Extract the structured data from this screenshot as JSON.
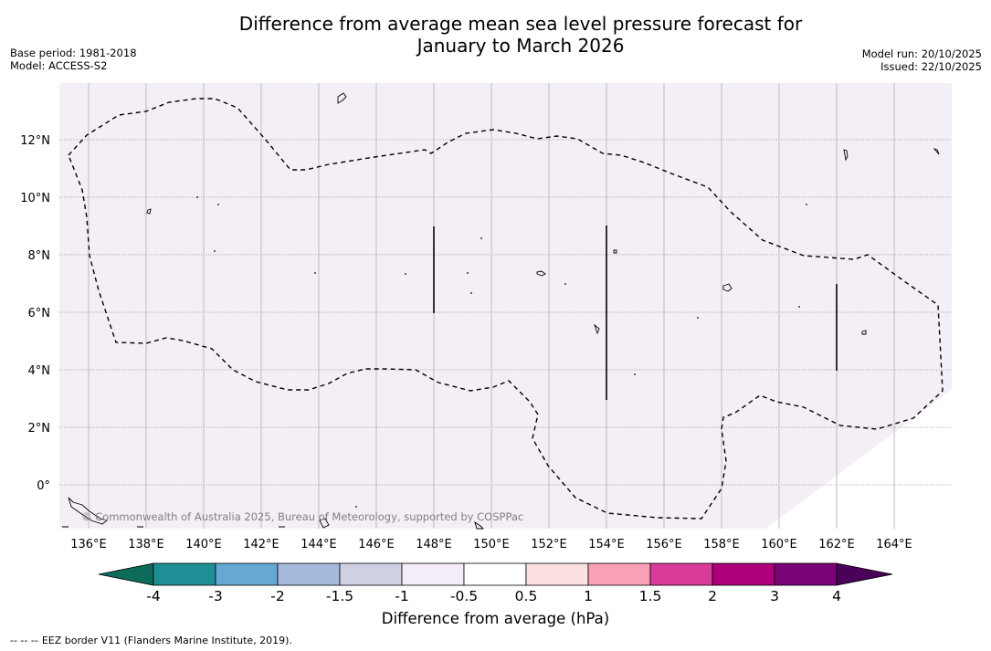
{
  "title_line1": "Difference from average mean sea level pressure forecast for",
  "title_line2": "January to March 2026",
  "base_period": "Base period: 1981-2018",
  "model": "Model: ACCESS-S2",
  "model_run": "Model run: 20/10/2025",
  "issued": "Issued: 22/10/2025",
  "copyright": "© Commonwealth of Australia 2025, Bureau of Meteorology, supported by COSPPac",
  "lat_labels": [
    "12°N",
    "10°N",
    "8°N",
    "6°N",
    "4°N",
    "2°N",
    "0°"
  ],
  "lon_labels": [
    "136°E",
    "138°E",
    "140°E",
    "142°E",
    "144°E",
    "146°E",
    "148°E",
    "150°E",
    "152°E",
    "154°E",
    "156°E",
    "158°E",
    "160°E",
    "162°E",
    "164°E"
  ],
  "colorbar": {
    "title": "Difference from average (hPa)",
    "tick_labels": [
      "-4",
      "-3",
      "-2",
      "-1.5",
      "-1",
      "-0.5",
      "0.5",
      "1",
      "1.5",
      "2",
      "3",
      "4"
    ],
    "below_color": "#0e6b5c",
    "above_color": "#4b0059",
    "colors": [
      "#1f8f96",
      "#65a8d2",
      "#a5b9dc",
      "#d0d0e4",
      "#f4ecf6",
      "#ffffff",
      "#fde0e0",
      "#f8a0b5",
      "#da3a9a",
      "#ae0179",
      "#7a0277"
    ]
  },
  "map_fill": "#f4eef6",
  "footnote_dashes": "--  --  --",
  "footnote": "EEZ border V11 (Flanders Marine Institute, 2019)."
}
